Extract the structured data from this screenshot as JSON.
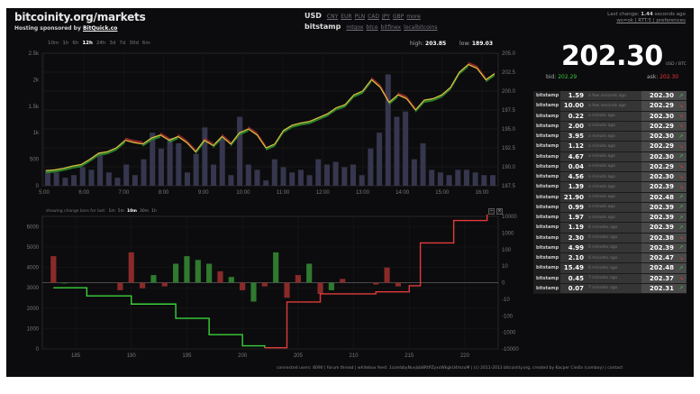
{
  "header": {
    "site": "bitcoinity.org/markets",
    "sponsor_prefix": "Hosting sponsored by",
    "sponsor_link": "BitQuick.co"
  },
  "currency": {
    "selected": "USD",
    "options": [
      "CNY",
      "EUR",
      "PLN",
      "CAD",
      "JPY",
      "GBP",
      "more"
    ],
    "exchange": "bitstamp",
    "exchange_options": [
      "mtgox",
      "btce",
      "bitfinex",
      "localbitcoins"
    ]
  },
  "status": {
    "last_change_prefix": "Last change:",
    "last_change_value": "1.44",
    "last_change_suffix": "seconds ago",
    "links": "ws=ok | RTT:5 | preferences"
  },
  "ranges": {
    "items": [
      "10m",
      "1h",
      "6h",
      "12h",
      "24h",
      "3d",
      "7d",
      "30d",
      "6m"
    ],
    "active": "12h"
  },
  "stats": {
    "high_label": "high:",
    "high": "203.85",
    "low_label": "low:",
    "low": "189.03"
  },
  "ticker": {
    "price": "202.30",
    "unit": "USD / BTC",
    "bid_label": "bid:",
    "bid": "202.29",
    "ask_label": "ask:",
    "ask": "202.30"
  },
  "trades": [
    {
      "ex": "bitstamp",
      "amt": "1.59",
      "ago": "a few seconds ago",
      "px": "202.30",
      "dir": "up"
    },
    {
      "ex": "bitstamp",
      "amt": "10.00",
      "ago": "a few seconds ago",
      "px": "202.29",
      "dir": "dn"
    },
    {
      "ex": "bitstamp",
      "amt": "0.22",
      "ago": "a minute ago",
      "px": "202.30",
      "dir": "dn"
    },
    {
      "ex": "bitstamp",
      "amt": "2.00",
      "ago": "a minute ago",
      "px": "202.29",
      "dir": "dn"
    },
    {
      "ex": "bitstamp",
      "amt": "3.95",
      "ago": "a minute ago",
      "px": "202.30",
      "dir": "up"
    },
    {
      "ex": "bitstamp",
      "amt": "1.12",
      "ago": "a minute ago",
      "px": "202.29",
      "dir": "dn"
    },
    {
      "ex": "bitstamp",
      "amt": "4.67",
      "ago": "a minute ago",
      "px": "202.30",
      "dir": "up"
    },
    {
      "ex": "bitstamp",
      "amt": "0.04",
      "ago": "a minute ago",
      "px": "202.29",
      "dir": "dn"
    },
    {
      "ex": "bitstamp",
      "amt": "4.56",
      "ago": "a minute ago",
      "px": "202.30",
      "dir": "dn"
    },
    {
      "ex": "bitstamp",
      "amt": "1.39",
      "ago": "a minute ago",
      "px": "202.39",
      "dir": "dn"
    },
    {
      "ex": "bitstamp",
      "amt": "21.90",
      "ago": "a minute ago",
      "px": "202.48",
      "dir": "up"
    },
    {
      "ex": "bitstamp",
      "amt": "0.99",
      "ago": "a minute ago",
      "px": "202.39",
      "dir": "up"
    },
    {
      "ex": "bitstamp",
      "amt": "1.97",
      "ago": "a minute ago",
      "px": "202.39",
      "dir": "up"
    },
    {
      "ex": "bitstamp",
      "amt": "1.19",
      "ago": "6 minutes ago",
      "px": "202.39",
      "dir": "up"
    },
    {
      "ex": "bitstamp",
      "amt": "2.30",
      "ago": "6 minutes ago",
      "px": "202.38",
      "dir": "dn"
    },
    {
      "ex": "bitstamp",
      "amt": "4.99",
      "ago": "6 minutes ago",
      "px": "202.39",
      "dir": "up"
    },
    {
      "ex": "bitstamp",
      "amt": "2.10",
      "ago": "6 minutes ago",
      "px": "202.47",
      "dir": "dn"
    },
    {
      "ex": "bitstamp",
      "amt": "15.49",
      "ago": "6 minutes ago",
      "px": "202.48",
      "dir": "up"
    },
    {
      "ex": "bitstamp",
      "amt": "0.45",
      "ago": "7 minutes ago",
      "px": "202.37",
      "dir": "dn"
    },
    {
      "ex": "bitstamp",
      "amt": "0.07",
      "ago": "7 minutes ago",
      "px": "202.31",
      "dir": "up"
    }
  ],
  "volume_controls": {
    "label": "showing change bars for last:",
    "items": [
      "1m",
      "5m",
      "10m",
      "30m",
      "1h"
    ],
    "active": "10m"
  },
  "footer": {
    "text": "connected users: 8090 | forum thread | whitebox feed: 1combbyNuvJsb8RtPZyxsWkgkU4mzuM | (c) 2011-2013 bitcoinity.org, created by Kacper Cieśla (comboy) | contact"
  },
  "colors": {
    "bg": "#0c0c0e",
    "up": "#3ad13a",
    "down": "#e23a3a",
    "bar": "#3b3b55",
    "line": "#e0c040"
  },
  "chart_data": [
    {
      "type": "line",
      "title": "",
      "series": [
        {
          "name": "",
          "values": [
            189.5,
            189.6,
            189.8,
            190.1,
            190.3,
            191.0,
            191.8,
            192.0,
            192.5,
            193.5,
            193.2,
            193.0,
            193.8,
            194.2,
            193.5,
            194.0,
            193.2,
            192.0,
            193.5,
            192.8,
            194.0,
            193.0,
            194.5,
            195.0,
            194.2,
            192.5,
            193.0,
            194.8,
            195.5,
            195.8,
            196.0,
            196.5,
            197.0,
            197.8,
            198.2,
            199.5,
            200.0,
            201.5,
            200.5,
            198.5,
            199.5,
            199.0,
            197.5,
            198.8,
            199.0,
            199.5,
            200.5,
            202.5,
            203.5,
            203.0,
            201.5,
            202.3
          ]
        }
      ],
      "x_ticks": [
        "5:00",
        "6:00",
        "7:00",
        "8:00",
        "9:00",
        "10:00",
        "11:00",
        "12:00",
        "13:00",
        "14:00",
        "15:00",
        "16:00"
      ],
      "y_right": {
        "ticks": [
          "187.5",
          "190.0",
          "192.5",
          "195.0",
          "197.5",
          "200.0",
          "202.5",
          "205.0"
        ],
        "range": [
          187.5,
          205.0
        ]
      },
      "y_left": {
        "ticks": [
          "0",
          "500",
          "1k",
          "1.5k",
          "2k",
          "2.5k"
        ],
        "range": [
          0,
          2500
        ],
        "label": "volume"
      },
      "volume": [
        300,
        250,
        150,
        200,
        350,
        300,
        600,
        250,
        150,
        400,
        200,
        500,
        1000,
        700,
        900,
        800,
        250,
        600,
        1100,
        400,
        900,
        200,
        1300,
        400,
        300,
        100,
        500,
        350,
        250,
        300,
        200,
        500,
        400,
        450,
        350,
        400,
        200,
        700,
        1000,
        2100,
        1300,
        1400,
        500,
        800,
        300,
        250,
        200,
        300,
        300,
        250,
        200,
        200
      ]
    },
    {
      "type": "bar",
      "title": "",
      "x_ticks": [
        "185",
        "190",
        "195",
        "200",
        "205",
        "210",
        "215",
        "220"
      ],
      "y_left": {
        "ticks": [
          "0",
          "1000",
          "2000",
          "3000",
          "4000",
          "5000",
          "6000"
        ],
        "range": [
          0,
          6500
        ]
      },
      "y_right": {
        "ticks": [
          "-10000",
          "-1000",
          "-100",
          "-10",
          "0",
          "10",
          "100",
          "1000",
          "10000"
        ]
      },
      "change_bars": [
        {
          "x": 183,
          "v": 70,
          "c": "red"
        },
        {
          "x": 184,
          "v": -2,
          "c": "green"
        },
        {
          "x": 189,
          "v": -20,
          "c": "red"
        },
        {
          "x": 190,
          "v": 80,
          "c": "red"
        },
        {
          "x": 191,
          "v": -15,
          "c": "red"
        },
        {
          "x": 192,
          "v": 20,
          "c": "green"
        },
        {
          "x": 193,
          "v": -10,
          "c": "red"
        },
        {
          "x": 194,
          "v": 50,
          "c": "green"
        },
        {
          "x": 195,
          "v": 70,
          "c": "green"
        },
        {
          "x": 196,
          "v": 60,
          "c": "green"
        },
        {
          "x": 197,
          "v": 50,
          "c": "green"
        },
        {
          "x": 198,
          "v": 30,
          "c": "red"
        },
        {
          "x": 199,
          "v": 15,
          "c": "green"
        },
        {
          "x": 200,
          "v": -20,
          "c": "red"
        },
        {
          "x": 201,
          "v": -50,
          "c": "green"
        },
        {
          "x": 202,
          "v": -10,
          "c": "red"
        },
        {
          "x": 203,
          "v": 80,
          "c": "green"
        },
        {
          "x": 204,
          "v": -40,
          "c": "red"
        },
        {
          "x": 205,
          "v": 20,
          "c": "red"
        },
        {
          "x": 206,
          "v": 50,
          "c": "green"
        },
        {
          "x": 207,
          "v": -30,
          "c": "red"
        },
        {
          "x": 208,
          "v": -20,
          "c": "green"
        },
        {
          "x": 209,
          "v": 10,
          "c": "red"
        },
        {
          "x": 212,
          "v": -5,
          "c": "red"
        },
        {
          "x": 213,
          "v": 40,
          "c": "red"
        },
        {
          "x": 214,
          "v": -10,
          "c": "red"
        }
      ],
      "bids": [
        [
          183,
          3000
        ],
        [
          186,
          2600
        ],
        [
          190,
          2200
        ],
        [
          194,
          1500
        ],
        [
          197,
          700
        ],
        [
          200,
          150
        ],
        [
          202,
          60
        ]
      ],
      "asks": [
        [
          202,
          60
        ],
        [
          204,
          2300
        ],
        [
          207,
          2700
        ],
        [
          212,
          2800
        ],
        [
          215,
          3100
        ],
        [
          216,
          5200
        ],
        [
          219,
          6300
        ],
        [
          222,
          6600
        ]
      ]
    }
  ]
}
